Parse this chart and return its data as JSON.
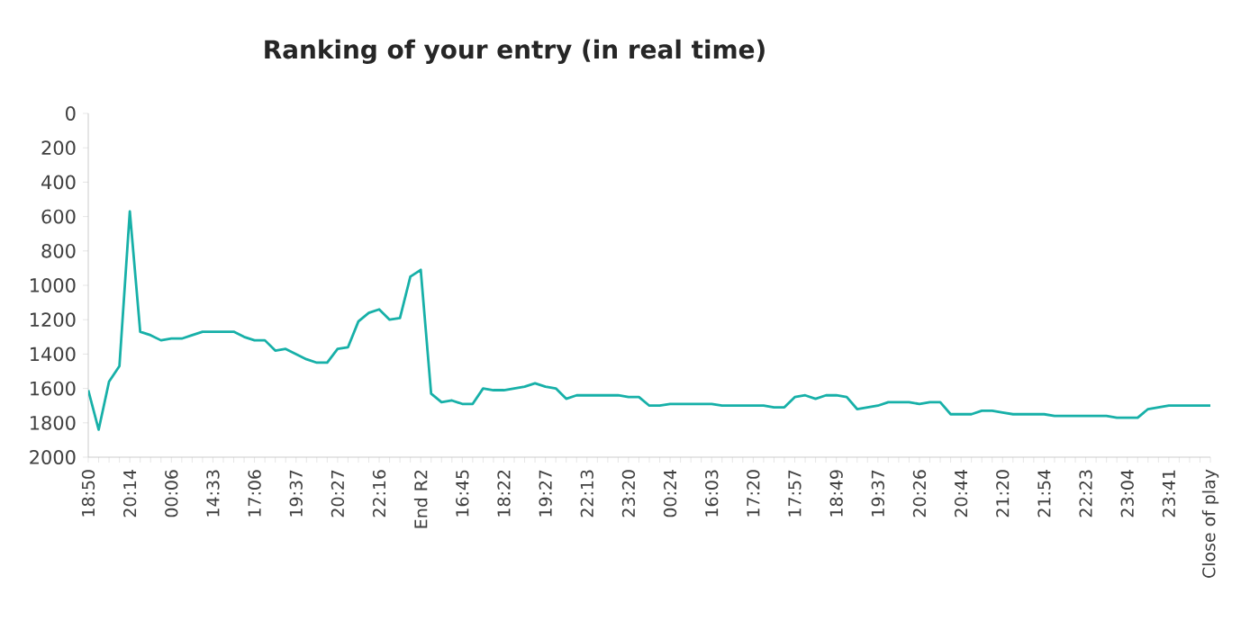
{
  "chart_data": {
    "type": "line",
    "title": "Ranking of your entry (in real time)",
    "categories": [
      "18:50",
      null,
      null,
      null,
      "20:14",
      null,
      null,
      null,
      "00:06",
      null,
      null,
      null,
      "14:33",
      null,
      null,
      null,
      "17:06",
      null,
      null,
      null,
      "19:37",
      null,
      null,
      null,
      "20:27",
      null,
      null,
      null,
      "22:16",
      null,
      null,
      null,
      "End R2",
      null,
      null,
      null,
      "16:45",
      null,
      null,
      null,
      "18:22",
      null,
      null,
      null,
      "19:27",
      null,
      null,
      null,
      "22:13",
      null,
      null,
      null,
      "23:20",
      null,
      null,
      null,
      "00:24",
      null,
      null,
      null,
      "16:03",
      null,
      null,
      null,
      "17:20",
      null,
      null,
      null,
      "17:57",
      null,
      null,
      null,
      "18:49",
      null,
      null,
      null,
      "19:37",
      null,
      null,
      null,
      "20:26",
      null,
      null,
      null,
      "20:44",
      null,
      null,
      null,
      "21:20",
      null,
      null,
      null,
      "21:54",
      null,
      null,
      null,
      "22:23",
      null,
      null,
      null,
      "23:04",
      null,
      null,
      null,
      "23:41",
      null,
      null,
      null,
      "Close of play"
    ],
    "values": [
      1610,
      1840,
      1560,
      1470,
      570,
      1270,
      1290,
      1320,
      1310,
      1310,
      1290,
      1270,
      1270,
      1270,
      1270,
      1300,
      1320,
      1320,
      1380,
      1370,
      1400,
      1430,
      1450,
      1450,
      1370,
      1360,
      1210,
      1160,
      1140,
      1200,
      1190,
      950,
      910,
      1630,
      1680,
      1670,
      1690,
      1690,
      1600,
      1610,
      1610,
      1600,
      1590,
      1570,
      1590,
      1600,
      1660,
      1640,
      1640,
      1640,
      1640,
      1640,
      1650,
      1650,
      1700,
      1700,
      1690,
      1690,
      1690,
      1690,
      1690,
      1700,
      1700,
      1700,
      1700,
      1700,
      1710,
      1710,
      1650,
      1640,
      1660,
      1640,
      1640,
      1650,
      1720,
      1710,
      1700,
      1680,
      1680,
      1680,
      1690,
      1680,
      1680,
      1750,
      1750,
      1750,
      1730,
      1730,
      1740,
      1750,
      1750,
      1750,
      1750,
      1760,
      1760,
      1760,
      1760,
      1760,
      1760,
      1770,
      1770,
      1770,
      1720,
      1710,
      1700,
      1700,
      1700,
      1700,
      1700
    ],
    "color": "#17b0a8",
    "ylim": [
      2000,
      0
    ],
    "yticks": [
      0,
      200,
      400,
      600,
      800,
      1000,
      1200,
      1400,
      1600,
      1800,
      2000
    ]
  }
}
